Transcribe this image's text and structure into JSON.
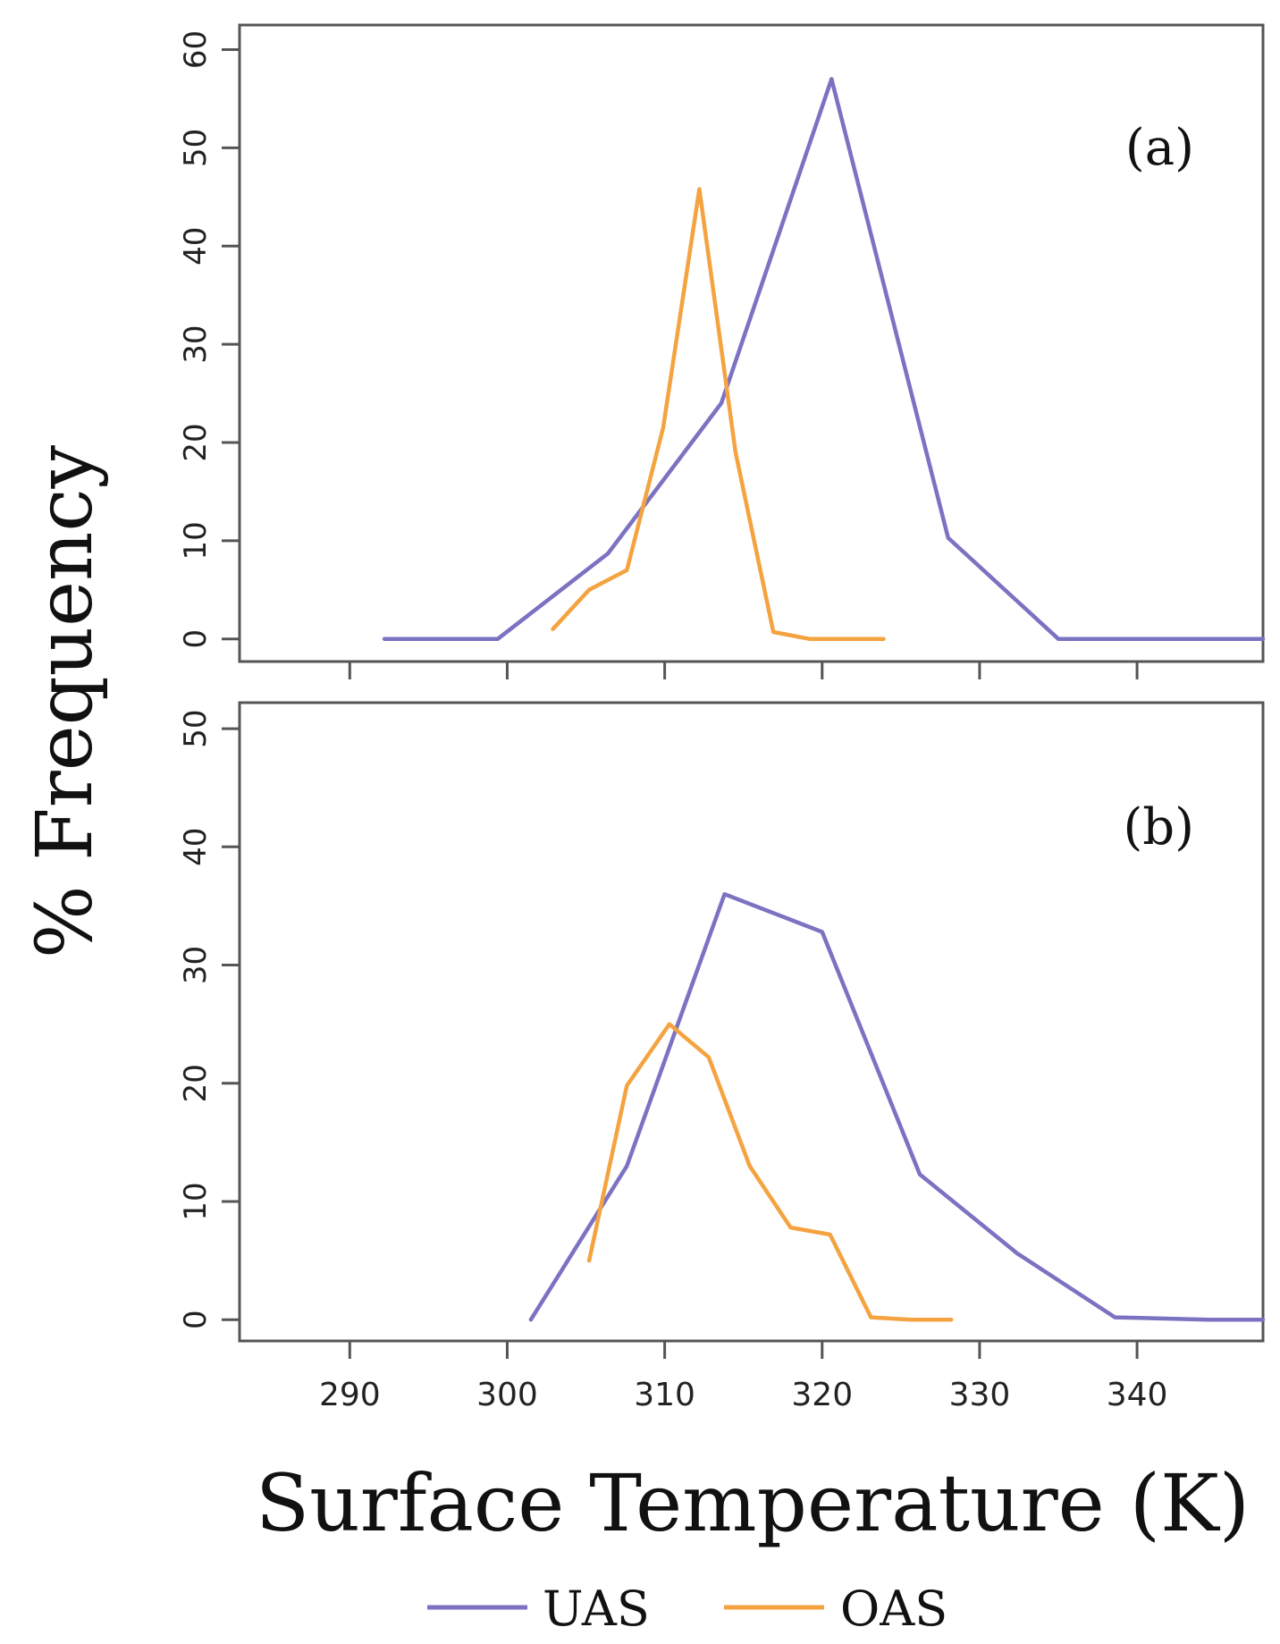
{
  "chart_data": {
    "type": "line",
    "xlabel": "Surface Temperature (K)",
    "ylabel": "% Frequency",
    "xlim": [
      283,
      348
    ],
    "xticks": [
      290,
      300,
      310,
      320,
      330,
      340
    ],
    "grid": false,
    "legend": {
      "placement": "bottom-center",
      "entries": [
        {
          "name": "UAS",
          "color": "#7b72c2"
        },
        {
          "name": "OAS",
          "color": "#f4a340"
        }
      ]
    },
    "panels": [
      {
        "tag": "(a)",
        "ylim": [
          -2.3,
          62.5
        ],
        "yticks": [
          0,
          10,
          20,
          30,
          40,
          50,
          60
        ],
        "series": [
          {
            "name": "UAS",
            "color": "#7b72c2",
            "x": [
              292.2,
              299.4,
              306.4,
              313.6,
              320.6,
              328.0,
              335.0,
              342.0,
              348.0
            ],
            "y": [
              0,
              0,
              8.7,
              24.0,
              57.0,
              10.3,
              0,
              0,
              0
            ]
          },
          {
            "name": "OAS",
            "color": "#f4a340",
            "x": [
              302.9,
              305.2,
              307.6,
              309.9,
              312.2,
              314.5,
              316.9,
              319.2,
              321.6,
              323.9
            ],
            "y": [
              1.0,
              5.0,
              7.0,
              21.5,
              45.8,
              19.0,
              0.7,
              0,
              0,
              0
            ]
          }
        ]
      },
      {
        "tag": "(b)",
        "ylim": [
          -1.8,
          52.2
        ],
        "yticks": [
          0,
          10,
          20,
          30,
          40,
          50
        ],
        "series": [
          {
            "name": "UAS",
            "color": "#7b72c2",
            "x": [
              301.5,
              307.6,
              313.8,
              320.0,
              326.2,
              332.4,
              338.6,
              344.6,
              348.0
            ],
            "y": [
              0,
              13.0,
              36.0,
              32.8,
              12.3,
              5.6,
              0.2,
              0,
              0
            ]
          },
          {
            "name": "OAS",
            "color": "#f4a340",
            "x": [
              305.2,
              307.6,
              310.3,
              312.8,
              315.4,
              318.0,
              320.5,
              323.1,
              325.6,
              328.2
            ],
            "y": [
              5.0,
              19.8,
              25.0,
              22.2,
              13.0,
              7.8,
              7.2,
              0.2,
              0,
              0
            ]
          }
        ]
      }
    ]
  }
}
